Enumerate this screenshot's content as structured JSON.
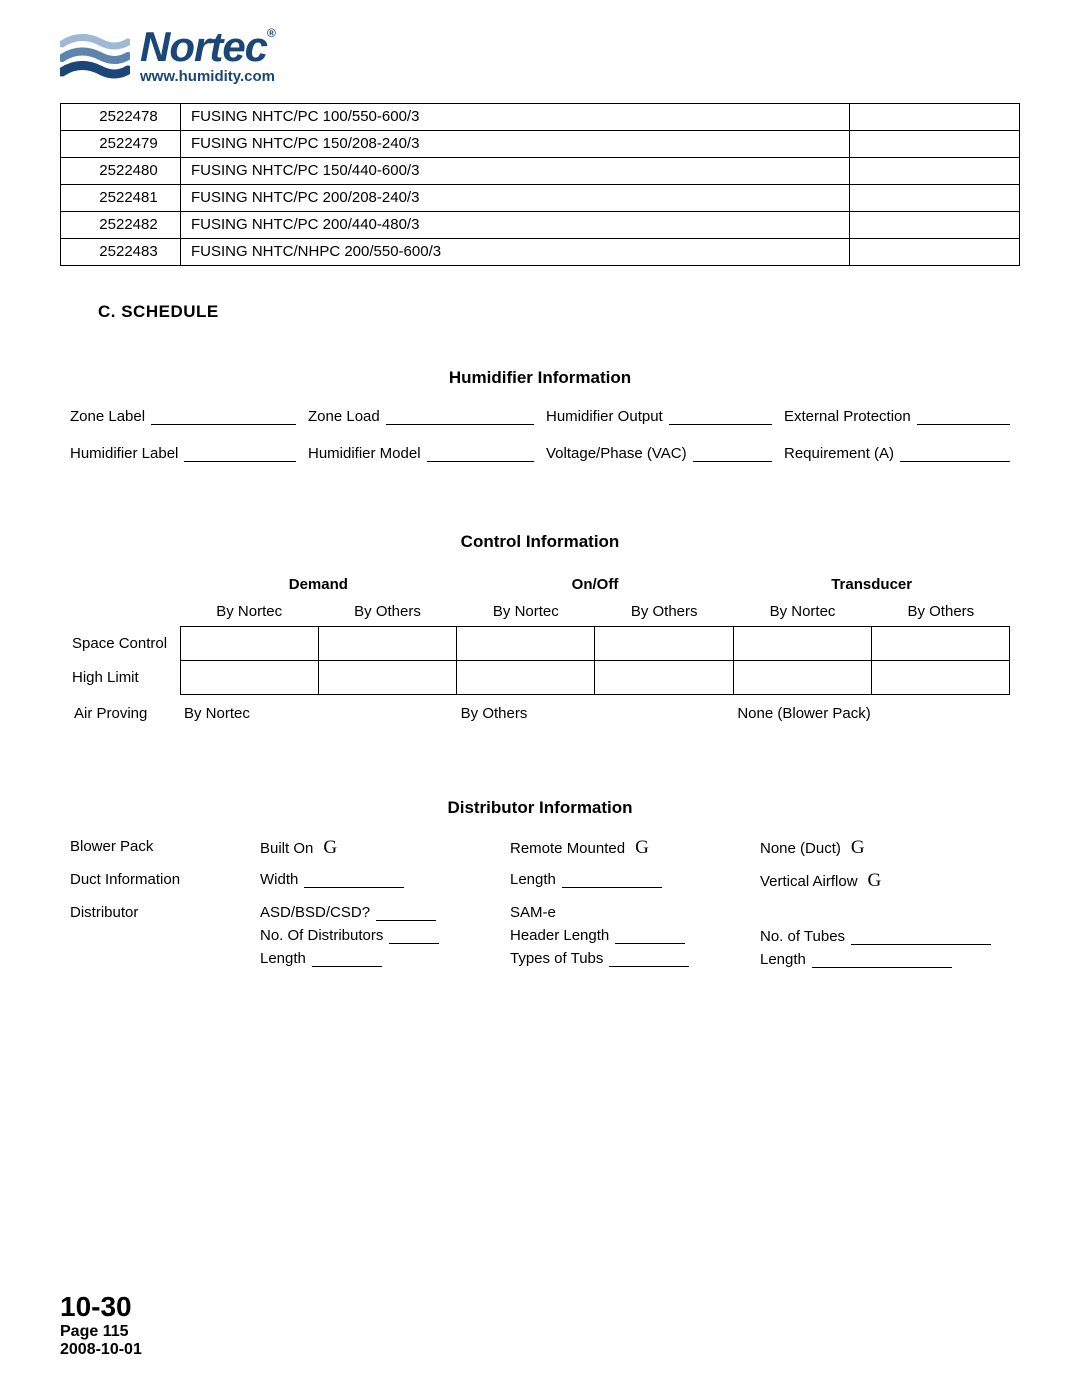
{
  "logo": {
    "name": "Nortec",
    "url": "www.humidity.com",
    "brand_color": "#1b4678",
    "wave_light": "#9fb9d4",
    "wave_dark": "#1b4678"
  },
  "parts_table": {
    "rows": [
      {
        "pn": "2522478",
        "desc": "FUSING NHTC/PC 100/550-600/3"
      },
      {
        "pn": "2522479",
        "desc": "FUSING NHTC/PC 150/208-240/3"
      },
      {
        "pn": "2522480",
        "desc": "FUSING NHTC/PC 150/440-600/3"
      },
      {
        "pn": "2522481",
        "desc": "FUSING NHTC/PC 200/208-240/3"
      },
      {
        "pn": "2522482",
        "desc": "FUSING NHTC/PC 200/440-480/3"
      },
      {
        "pn": "2522483",
        "desc": "FUSING NHTC/NHPC 200/550-600/3"
      }
    ]
  },
  "section_c": {
    "heading": "C.   SCHEDULE"
  },
  "humidifier_info": {
    "title": "Humidifier Information",
    "fields_row1": [
      "Zone Label",
      "Zone Load",
      "Humidifier Output",
      "External Protection"
    ],
    "fields_row2": [
      "Humidifier Label",
      "Humidifier Model",
      "Voltage/Phase (VAC)",
      "Requirement (A)"
    ]
  },
  "control_info": {
    "title": "Control Information",
    "top_headers": [
      "Demand",
      "On/Off",
      "Transducer"
    ],
    "sub_headers": [
      "By Nortec",
      "By Others",
      "By Nortec",
      "By Others",
      "By Nortec",
      "By Others"
    ],
    "row_labels": [
      "Space Control",
      "High Limit"
    ],
    "air_proving": {
      "label": "Air Proving",
      "opts": [
        "By Nortec",
        "By Others",
        "None (Blower Pack)"
      ]
    }
  },
  "distributor_info": {
    "title": "Distributor Information",
    "rows": {
      "blower_pack": {
        "label": "Blower Pack",
        "opts": [
          "Built On",
          "Remote Mounted",
          "None (Duct)"
        ],
        "glyph": "G"
      },
      "duct": {
        "label": "Duct Information",
        "width": "Width",
        "length": "Length",
        "vflow": "Vertical Airflow",
        "glyph": "G"
      },
      "distributor": {
        "label": "Distributor",
        "col1": [
          "ASD/BSD/CSD?",
          "No. Of Distributors",
          "Length"
        ],
        "col2_head": "SAM-e",
        "col2": [
          "Header Length",
          "Types of Tubs"
        ],
        "col3": [
          "No. of Tubes",
          "Length"
        ]
      }
    }
  },
  "footer": {
    "section": "10-30",
    "page": "Page 115",
    "date": "2008-10-01"
  }
}
